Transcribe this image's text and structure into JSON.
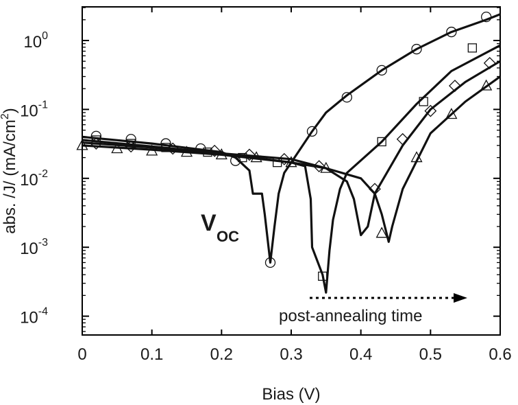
{
  "chart_data": {
    "type": "line",
    "xlabel": "Bias (V)",
    "ylabel_parts": {
      "prefix": "abs. /J/ (mA/cm",
      "exponent": "2",
      "suffix": ")"
    },
    "xlim": [
      0,
      0.6
    ],
    "ylim": [
      5e-05,
      2.8
    ],
    "y_scale": "log",
    "grid": false,
    "legend": "none",
    "x_ticks": [
      "0",
      "0.1",
      "0.2",
      "0.3",
      "0.4",
      "0.5",
      "0.6"
    ],
    "y_ticks": [
      {
        "base": "10",
        "exponent": "0"
      },
      {
        "base": "10",
        "exponent": "-1"
      },
      {
        "base": "10",
        "exponent": "-2"
      },
      {
        "base": "10",
        "exponent": "-3"
      },
      {
        "base": "10",
        "exponent": "-4"
      }
    ],
    "annotations": {
      "voc_main": "V",
      "voc_sub": "OC",
      "arrow_label": "post-annealing time"
    },
    "series": [
      {
        "marker": "circle",
        "line": [
          [
            0,
            0.04
          ],
          [
            0.1,
            0.032
          ],
          [
            0.2,
            0.024
          ],
          [
            0.22,
            0.02
          ],
          [
            0.24,
            0.013
          ],
          [
            0.245,
            0.006
          ],
          [
            0.258,
            0.006
          ],
          [
            0.262,
            0.003
          ],
          [
            0.27,
            0.0006
          ],
          [
            0.276,
            0.002
          ],
          [
            0.282,
            0.006
          ],
          [
            0.29,
            0.012
          ],
          [
            0.31,
            0.024
          ],
          [
            0.33,
            0.048
          ],
          [
            0.35,
            0.09
          ],
          [
            0.38,
            0.16
          ],
          [
            0.43,
            0.37
          ],
          [
            0.48,
            0.75
          ],
          [
            0.53,
            1.33
          ],
          [
            0.58,
            2.0
          ],
          [
            0.6,
            2.4
          ]
        ],
        "points": [
          [
            0.02,
            0.041
          ],
          [
            0.07,
            0.037
          ],
          [
            0.12,
            0.032
          ],
          [
            0.17,
            0.027
          ],
          [
            0.22,
            0.018
          ],
          [
            0.27,
            0.0006
          ],
          [
            0.33,
            0.048
          ],
          [
            0.38,
            0.15
          ],
          [
            0.43,
            0.37
          ],
          [
            0.48,
            0.75
          ],
          [
            0.53,
            1.33
          ],
          [
            0.58,
            2.2
          ]
        ]
      },
      {
        "marker": "square",
        "line": [
          [
            0,
            0.036
          ],
          [
            0.1,
            0.029
          ],
          [
            0.2,
            0.023
          ],
          [
            0.3,
            0.017
          ],
          [
            0.32,
            0.015
          ],
          [
            0.328,
            0.005
          ],
          [
            0.33,
            0.001
          ],
          [
            0.345,
            0.0004
          ],
          [
            0.35,
            0.00022
          ],
          [
            0.355,
            0.0009
          ],
          [
            0.36,
            0.0025
          ],
          [
            0.37,
            0.007
          ],
          [
            0.38,
            0.012
          ],
          [
            0.43,
            0.034
          ],
          [
            0.48,
            0.12
          ],
          [
            0.53,
            0.36
          ],
          [
            0.6,
            0.85
          ]
        ],
        "points": [
          [
            0.02,
            0.036
          ],
          [
            0.07,
            0.032
          ],
          [
            0.12,
            0.028
          ],
          [
            0.18,
            0.024
          ],
          [
            0.23,
            0.02
          ],
          [
            0.28,
            0.017
          ],
          [
            0.345,
            0.00038
          ],
          [
            0.43,
            0.034
          ],
          [
            0.49,
            0.13
          ],
          [
            0.56,
            0.78
          ]
        ]
      },
      {
        "marker": "diamond",
        "line": [
          [
            0,
            0.033
          ],
          [
            0.1,
            0.028
          ],
          [
            0.2,
            0.023
          ],
          [
            0.3,
            0.019
          ],
          [
            0.35,
            0.014
          ],
          [
            0.38,
            0.009
          ],
          [
            0.39,
            0.005
          ],
          [
            0.4,
            0.0015
          ],
          [
            0.41,
            0.002
          ],
          [
            0.42,
            0.006
          ],
          [
            0.46,
            0.03
          ],
          [
            0.5,
            0.1
          ],
          [
            0.55,
            0.25
          ],
          [
            0.6,
            0.5
          ]
        ],
        "points": [
          [
            0.02,
            0.032
          ],
          [
            0.07,
            0.029
          ],
          [
            0.13,
            0.027
          ],
          [
            0.19,
            0.025
          ],
          [
            0.24,
            0.022
          ],
          [
            0.29,
            0.019
          ],
          [
            0.34,
            0.015
          ],
          [
            0.42,
            0.007
          ],
          [
            0.46,
            0.037
          ],
          [
            0.5,
            0.095
          ],
          [
            0.535,
            0.22
          ],
          [
            0.585,
            0.47
          ]
        ]
      },
      {
        "marker": "triangle",
        "line": [
          [
            0,
            0.03
          ],
          [
            0.1,
            0.026
          ],
          [
            0.2,
            0.022
          ],
          [
            0.3,
            0.017
          ],
          [
            0.35,
            0.014
          ],
          [
            0.4,
            0.01
          ],
          [
            0.42,
            0.006
          ],
          [
            0.43,
            0.003
          ],
          [
            0.44,
            0.0012
          ],
          [
            0.445,
            0.002
          ],
          [
            0.46,
            0.007
          ],
          [
            0.5,
            0.045
          ],
          [
            0.55,
            0.13
          ],
          [
            0.6,
            0.3
          ]
        ],
        "points": [
          [
            0.0,
            0.03
          ],
          [
            0.05,
            0.027
          ],
          [
            0.1,
            0.025
          ],
          [
            0.15,
            0.024
          ],
          [
            0.2,
            0.022
          ],
          [
            0.25,
            0.02
          ],
          [
            0.3,
            0.017
          ],
          [
            0.35,
            0.014
          ],
          [
            0.43,
            0.0016
          ],
          [
            0.48,
            0.02
          ],
          [
            0.53,
            0.085
          ],
          [
            0.58,
            0.22
          ]
        ]
      }
    ]
  }
}
